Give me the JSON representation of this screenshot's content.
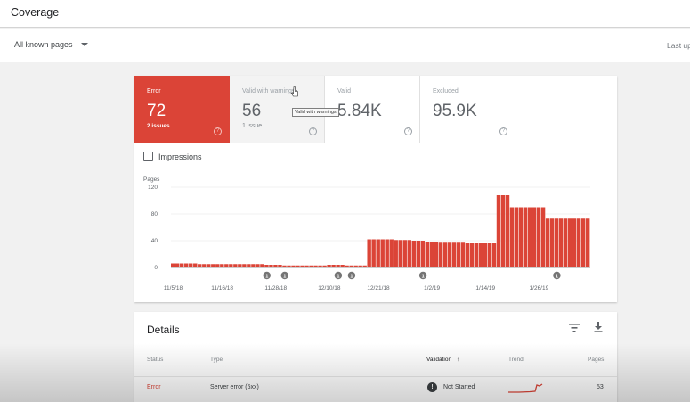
{
  "header": {
    "title": "Coverage"
  },
  "filter": {
    "label": "All known pages",
    "last_updated": "Last up"
  },
  "tiles": [
    {
      "label": "Error",
      "value": "72",
      "sub": "2 issues",
      "help": "?"
    },
    {
      "label": "Valid with warnings",
      "value": "56",
      "sub": "1 issue",
      "help": "?"
    },
    {
      "label": "Valid",
      "value": "5.84K",
      "sub": "",
      "help": "?"
    },
    {
      "label": "Excluded",
      "value": "95.9K",
      "sub": "",
      "help": "?"
    }
  ],
  "tooltip": "Valid with warnings",
  "impressions_label": "Impressions",
  "chart_data": {
    "type": "bar",
    "ylabel": "Pages",
    "ylim": [
      0,
      120
    ],
    "yticks": [
      0,
      40,
      80,
      120
    ],
    "x_tick_labels": [
      "11/5/18",
      "11/16/18",
      "11/28/18",
      "12/10/18",
      "12/21/18",
      "1/2/19",
      "1/14/19",
      "1/26/19"
    ],
    "x_tick_index": [
      0,
      11,
      23,
      35,
      46,
      58,
      70,
      82
    ],
    "annotation_days": [
      21,
      25,
      37,
      40,
      56,
      86
    ],
    "annotation_label": "1",
    "color": "#db4437",
    "values": [
      6,
      6,
      6,
      6,
      6,
      6,
      5,
      5,
      5,
      5,
      5,
      5,
      5,
      5,
      5,
      5,
      5,
      5,
      5,
      5,
      5,
      4,
      4,
      4,
      4,
      3,
      3,
      3,
      3,
      3,
      3,
      3,
      3,
      3,
      3,
      4,
      4,
      4,
      4,
      3,
      3,
      3,
      3,
      3,
      42,
      42,
      42,
      42,
      42,
      42,
      41,
      41,
      41,
      41,
      40,
      40,
      40,
      38,
      38,
      38,
      37,
      37,
      37,
      37,
      37,
      37,
      36,
      36,
      36,
      36,
      36,
      36,
      36,
      108,
      108,
      108,
      90,
      90,
      90,
      90,
      90,
      90,
      90,
      90,
      73,
      73,
      73,
      73,
      73,
      73,
      73,
      73,
      73,
      73
    ]
  },
  "details": {
    "title": "Details",
    "headers": {
      "status": "Status",
      "type": "Type",
      "validation": "Validation",
      "trend": "Trend",
      "pages": "Pages"
    },
    "sort_arrow": "↑",
    "rows": [
      {
        "status": "Error",
        "type": "Server error (5xx)",
        "validation": "Not Started",
        "validation_badge": "!",
        "pages": "53"
      }
    ]
  }
}
